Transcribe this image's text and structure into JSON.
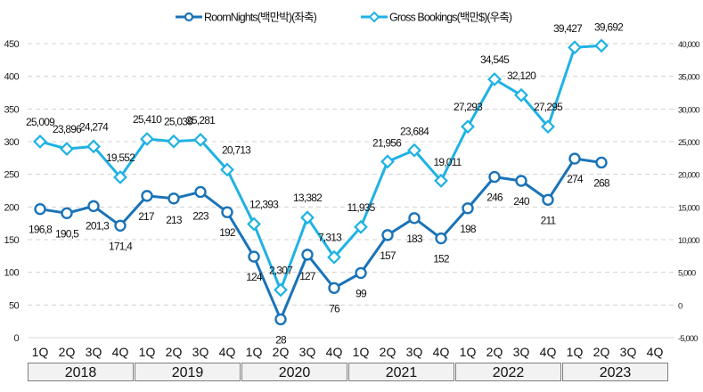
{
  "chart_data": {
    "type": "line",
    "title": "",
    "legend_position": "top-center",
    "x": [
      "1Q",
      "2Q",
      "3Q",
      "4Q",
      "1Q",
      "2Q",
      "3Q",
      "4Q",
      "1Q",
      "2Q",
      "3Q",
      "4Q",
      "1Q",
      "2Q",
      "3Q",
      "4Q",
      "1Q",
      "2Q",
      "3Q",
      "4Q",
      "1Q",
      "2Q",
      "3Q",
      "4Q"
    ],
    "years": [
      "2018",
      "2019",
      "2020",
      "2021",
      "2022",
      "2023"
    ],
    "left_axis": {
      "min": 0,
      "max": 450,
      "ticks": [
        "0",
        "50",
        "100",
        "150",
        "200",
        "250",
        "300",
        "350",
        "400",
        "450"
      ]
    },
    "right_axis": {
      "min": -5000,
      "max": 40000,
      "ticks": [
        "-5,000",
        "0",
        "5,000",
        "10,000",
        "15,000",
        "20,000",
        "25,000",
        "30,000",
        "35,000",
        "40,000"
      ]
    },
    "grid": true,
    "series": [
      {
        "name": "RoomNights(백만박)(좌축)",
        "axis": "left",
        "color": "#1a73b8",
        "marker": "circle",
        "values": [
          196.8,
          190.5,
          201.3,
          171.4,
          217,
          213,
          223,
          192,
          124,
          28,
          127,
          76,
          99,
          157,
          183,
          152,
          198,
          246,
          240,
          211,
          274,
          268
        ],
        "labels": [
          "196,8",
          "190,5",
          "201,3",
          "171,4",
          "217",
          "213",
          "223",
          "192",
          "124",
          "28",
          "127",
          "76",
          "99",
          "157",
          "183",
          "152",
          "198",
          "246",
          "240",
          "211",
          "274",
          "268"
        ]
      },
      {
        "name": "Gross Bookings(백만$)(우축)",
        "axis": "right",
        "color": "#1fb2e4",
        "marker": "diamond",
        "values": [
          25009,
          23896,
          24274,
          19552,
          25410,
          25039,
          25281,
          20713,
          12393,
          2307,
          13382,
          7313,
          11935,
          21956,
          23684,
          19011,
          27293,
          34545,
          32120,
          27295,
          39427,
          39692
        ],
        "labels": [
          "25,009",
          "23,896",
          "24,274",
          "19,552",
          "25,410",
          "25,039",
          "25,281",
          "20,713",
          "12,393",
          "2,307",
          "13,382",
          "7,313",
          "11,935",
          "21,956",
          "23,684",
          "19,011",
          "27,293",
          "34,545",
          "32,120",
          "27,295",
          "39,427",
          "39,692"
        ]
      }
    ]
  },
  "legend": [
    {
      "label": "RoomNights(백만박)(좌축)"
    },
    {
      "label": "Gross Bookings(백만$)(우축)"
    }
  ]
}
